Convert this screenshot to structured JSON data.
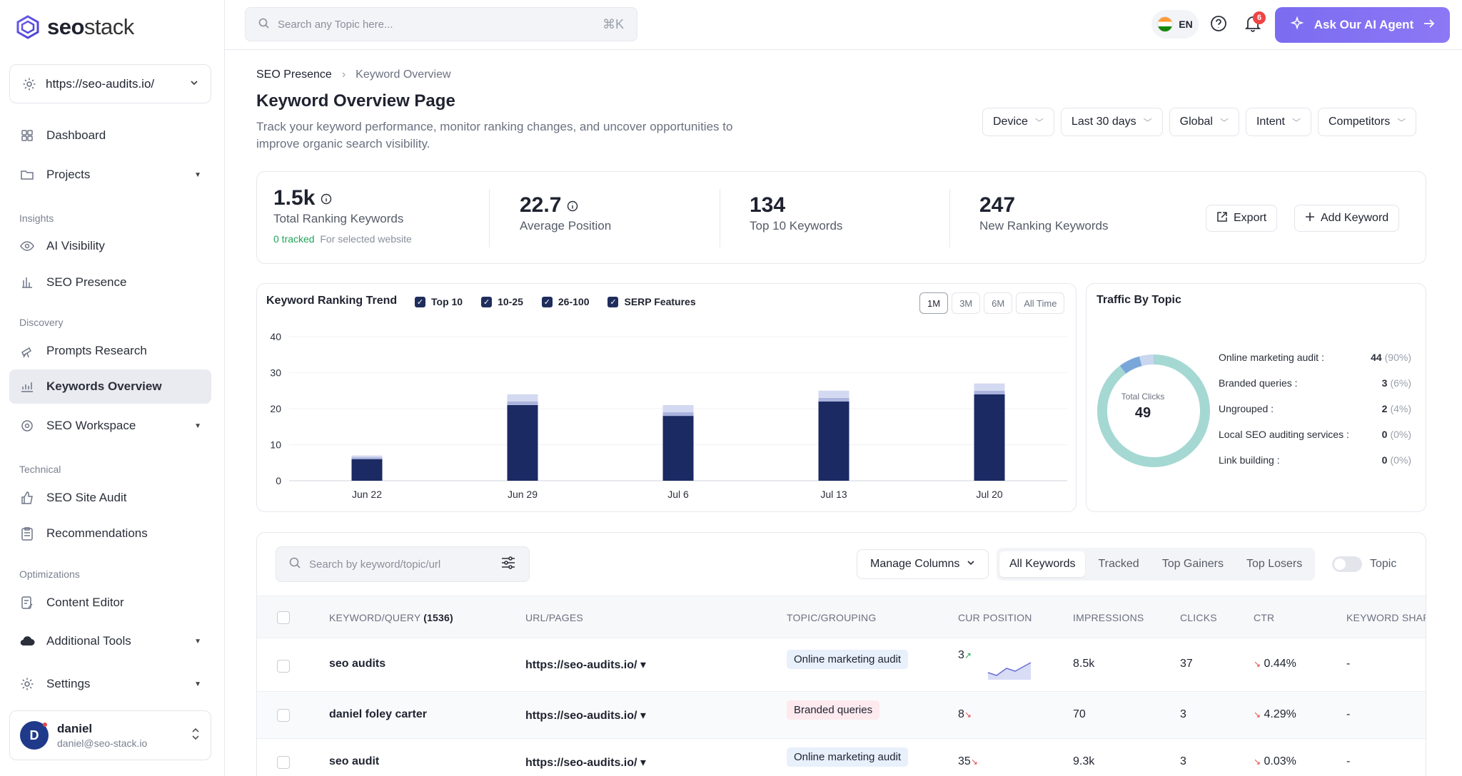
{
  "app": {
    "logo_name_bold": "seo",
    "logo_name_light": "stack"
  },
  "sidebar": {
    "site": "https://seo-audits.io/",
    "items": {
      "dashboard": "Dashboard",
      "projects": "Projects",
      "insights_label": "Insights",
      "ai_visibility": "AI Visibility",
      "seo_presence": "SEO Presence",
      "discovery_label": "Discovery",
      "prompts_research": "Prompts Research",
      "keywords_overview": "Keywords Overview",
      "seo_workspace": "SEO Workspace",
      "technical_label": "Technical",
      "seo_site_audit": "SEO Site Audit",
      "recommendations": "Recommendations",
      "optimizations_label": "Optimizations",
      "content_editor": "Content Editor",
      "additional_tools": "Additional Tools",
      "settings": "Settings"
    },
    "user": {
      "initial": "D",
      "name": "daniel",
      "email": "daniel@seo-stack.io"
    }
  },
  "topbar": {
    "search_placeholder": "Search any Topic here...",
    "shortcut": "⌘K",
    "lang": "EN",
    "notifications": "6",
    "ai_button": "Ask Our AI Agent"
  },
  "header": {
    "breadcrumb_root": "SEO Presence",
    "breadcrumb_current": "Keyword Overview",
    "title": "Keyword Overview Page",
    "description": "Track your keyword performance, monitor ranking changes, and uncover opportunities to improve organic search visibility."
  },
  "filters": {
    "device": "Device",
    "range": "Last 30 days",
    "region": "Global",
    "intent": "Intent",
    "competitors": "Competitors"
  },
  "stats": {
    "total_value": "1.5k",
    "total_label": "Total Ranking Keywords",
    "tracked": "0 tracked",
    "tracked_note": "For selected website",
    "avg_value": "22.7",
    "avg_label": "Average Position",
    "top10_value": "134",
    "top10_label": "Top 10 Keywords",
    "new_value": "247",
    "new_label": "New Ranking Keywords",
    "export": "Export",
    "add_keyword": "Add Keyword"
  },
  "trend": {
    "title": "Keyword Ranking Trend",
    "checks": [
      "Top 10",
      "10-25",
      "26-100",
      "SERP Features"
    ],
    "ranges": [
      "1M",
      "3M",
      "6M",
      "All Time"
    ],
    "active_range": "1M"
  },
  "chart_data": [
    {
      "type": "bar",
      "stacked": true,
      "title": "Keyword Ranking Trend",
      "categories": [
        "Jun 22",
        "Jun 29",
        "Jul 6",
        "Jul 13",
        "Jul 20"
      ],
      "series": [
        {
          "name": "Top 10",
          "values": [
            6,
            21,
            18,
            22,
            24
          ],
          "color": "#1b2a63"
        },
        {
          "name": "10-25",
          "values": [
            0.5,
            1,
            1,
            1,
            1
          ],
          "color": "#a9b3dd"
        },
        {
          "name": "26-100",
          "values": [
            0.5,
            2,
            2,
            2,
            2
          ],
          "color": "#d3d9f0"
        }
      ],
      "ylim": [
        0,
        40
      ],
      "yticks": [
        0,
        10,
        20,
        30,
        40
      ],
      "grid": true
    },
    {
      "type": "pie",
      "donut": true,
      "title": "Traffic By Topic",
      "center_label": "Total Clicks",
      "center_value": "49",
      "labels": [
        "Online marketing audit",
        "Branded queries",
        "Ungrouped",
        "Local SEO auditing services",
        "Link building"
      ],
      "values": [
        44,
        3,
        2,
        0,
        0
      ],
      "percents": [
        "(90%)",
        "(6%)",
        "(4%)",
        "(0%)",
        "(0%)"
      ],
      "colors": [
        "#a5d8d3",
        "#7aa7d9",
        "#c8d6ee",
        "#e0e6f0",
        "#eef1f6"
      ]
    }
  ],
  "table": {
    "search_placeholder": "Search by keyword/topic/url",
    "manage_columns": "Manage Columns",
    "tabs": [
      "All Keywords",
      "Tracked",
      "Top Gainers",
      "Top Losers"
    ],
    "toggle_label": "Topic",
    "columns": {
      "keyword": "KEYWORD/QUERY",
      "keyword_count": "(1536)",
      "url": "URL/PAGES",
      "topic": "TOPIC/GROUPING",
      "position": "CUR POSITION",
      "impressions": "IMPRESSIONS",
      "clicks": "CLICKS",
      "ctr": "CTR",
      "share": "KEYWORD SHAR"
    },
    "rows": [
      {
        "keyword": "seo audits",
        "url": "https://seo-audits.io/ ▾",
        "topic": "Online marketing audit",
        "position": "3",
        "impressions": "8.5k",
        "clicks": "37",
        "ctr": "0.44%",
        "share": "-"
      },
      {
        "keyword": "daniel foley carter",
        "url": "https://seo-audits.io/ ▾",
        "topic": "Branded queries",
        "position": "8",
        "impressions": "70",
        "clicks": "3",
        "ctr": "4.29%",
        "share": "-"
      },
      {
        "keyword": "seo audit",
        "url": "https://seo-audits.io/ ▾",
        "topic": "Online marketing audit",
        "position": "35",
        "impressions": "9.3k",
        "clicks": "3",
        "ctr": "0.03%",
        "share": "-"
      }
    ]
  }
}
